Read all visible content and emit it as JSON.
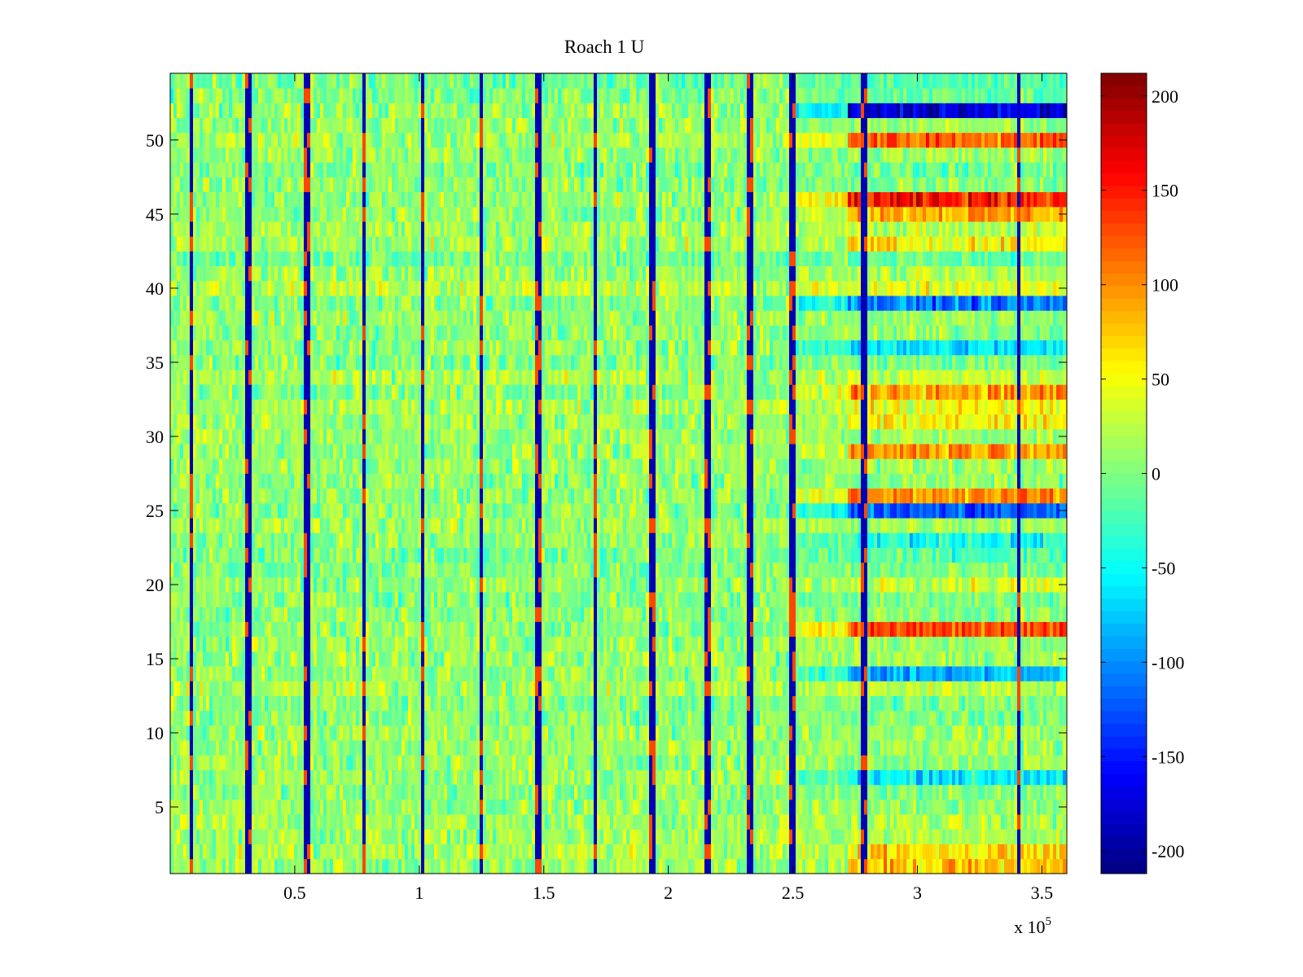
{
  "chart_data": {
    "type": "heatmap",
    "title": "Roach 1 U",
    "xlabel": "",
    "ylabel": "",
    "x_multiplier": {
      "prefix": "x 10",
      "exponent": "5"
    },
    "xlim": [
      0,
      360000
    ],
    "ylim": [
      0.5,
      54.5
    ],
    "x_ticks": [
      {
        "value": 50000,
        "label": "0.5"
      },
      {
        "value": 100000,
        "label": "1"
      },
      {
        "value": 150000,
        "label": "1.5"
      },
      {
        "value": 200000,
        "label": "2"
      },
      {
        "value": 250000,
        "label": "2.5"
      },
      {
        "value": 300000,
        "label": "3"
      },
      {
        "value": 350000,
        "label": "3.5"
      }
    ],
    "y_ticks": [
      {
        "value": 5,
        "label": "5"
      },
      {
        "value": 10,
        "label": "10"
      },
      {
        "value": 15,
        "label": "15"
      },
      {
        "value": 20,
        "label": "20"
      },
      {
        "value": 25,
        "label": "25"
      },
      {
        "value": 30,
        "label": "30"
      },
      {
        "value": 35,
        "label": "35"
      },
      {
        "value": 40,
        "label": "40"
      },
      {
        "value": 45,
        "label": "45"
      },
      {
        "value": 50,
        "label": "50"
      }
    ],
    "colorbar": {
      "colormap": "jet",
      "clim": [
        -212,
        212
      ],
      "ticks": [
        {
          "value": 200,
          "label": "200"
        },
        {
          "value": 150,
          "label": "150"
        },
        {
          "value": 100,
          "label": "100"
        },
        {
          "value": 50,
          "label": "50"
        },
        {
          "value": 0,
          "label": "0"
        },
        {
          "value": -50,
          "label": "-50"
        },
        {
          "value": -100,
          "label": "-100"
        },
        {
          "value": -150,
          "label": "-150"
        },
        {
          "value": -200,
          "label": "-200"
        }
      ]
    },
    "rows": 54,
    "background_mean": 8,
    "segments": [
      {
        "x_start": 0,
        "x_end": 251000,
        "description": "mixed noise roughly -20..40"
      },
      {
        "x_start": 251000,
        "x_end": 272000,
        "description": "transition region"
      },
      {
        "x_start": 272000,
        "x_end": 360000,
        "description": "strongly banded region"
      }
    ],
    "vertical_spikes_x": [
      8000,
      31000,
      54000,
      77000,
      101000,
      124000,
      147000,
      170000,
      193000,
      215000,
      232000,
      249000,
      278000,
      340000
    ],
    "late_row_values": [
      {
        "row": 52,
        "value": -175
      },
      {
        "row": 50,
        "value": 120
      },
      {
        "row": 46,
        "value": 150
      },
      {
        "row": 45,
        "value": 90
      },
      {
        "row": 43,
        "value": 55
      },
      {
        "row": 39,
        "value": -110
      },
      {
        "row": 36,
        "value": -65
      },
      {
        "row": 33,
        "value": 95
      },
      {
        "row": 32,
        "value": 50
      },
      {
        "row": 31,
        "value": 55
      },
      {
        "row": 29,
        "value": 100
      },
      {
        "row": 26,
        "value": 100
      },
      {
        "row": 25,
        "value": -125
      },
      {
        "row": 23,
        "value": -40
      },
      {
        "row": 20,
        "value": 40
      },
      {
        "row": 17,
        "value": 130
      },
      {
        "row": 14,
        "value": -85
      },
      {
        "row": 7,
        "value": -55
      },
      {
        "row": 2,
        "value": 65
      },
      {
        "row": 1,
        "value": 75
      }
    ]
  }
}
